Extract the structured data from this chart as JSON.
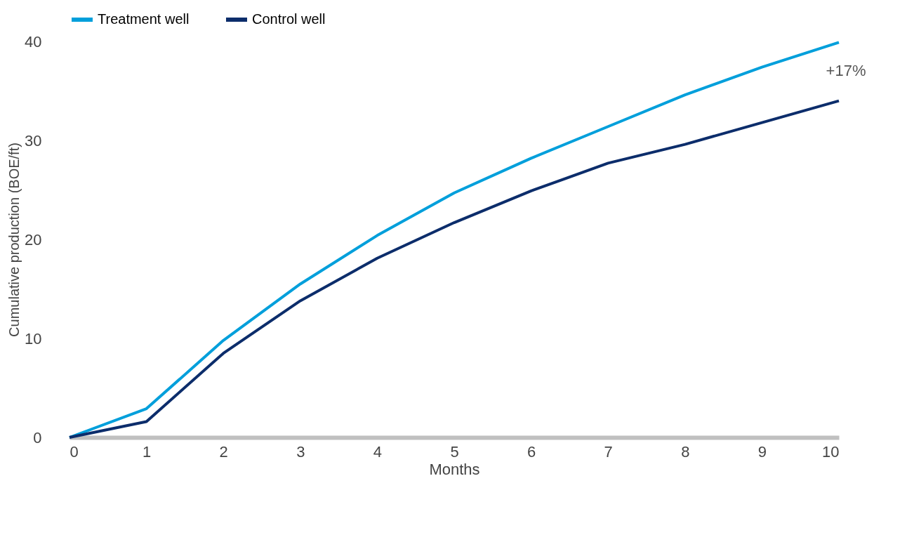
{
  "chart_data": {
    "type": "line",
    "xlabel": "Months",
    "ylabel": "Cumulative production (BOE/ft)",
    "x": [
      0,
      1,
      2,
      3,
      4,
      5,
      6,
      7,
      8,
      9,
      10
    ],
    "series": [
      {
        "name": "Treatment well",
        "color": "#009fdb",
        "values": [
          0,
          2.9,
          9.8,
          15.5,
          20.4,
          24.7,
          28.2,
          31.4,
          34.6,
          37.4,
          39.9
        ]
      },
      {
        "name": "Control well",
        "color": "#0c2d6b",
        "values": [
          0,
          1.6,
          8.5,
          13.8,
          18.1,
          21.7,
          24.9,
          27.7,
          29.6,
          31.8,
          34.0
        ]
      }
    ],
    "xlim": [
      0,
      10
    ],
    "xticks": [
      0,
      1,
      2,
      3,
      4,
      5,
      6,
      7,
      8,
      9,
      10
    ],
    "ylim": [
      0,
      40
    ],
    "yticks": [
      0,
      10,
      20,
      30,
      40
    ],
    "grid": false,
    "legend": "top",
    "marker": "none",
    "line_style": "solid",
    "annotations": [
      "+17%"
    ]
  }
}
